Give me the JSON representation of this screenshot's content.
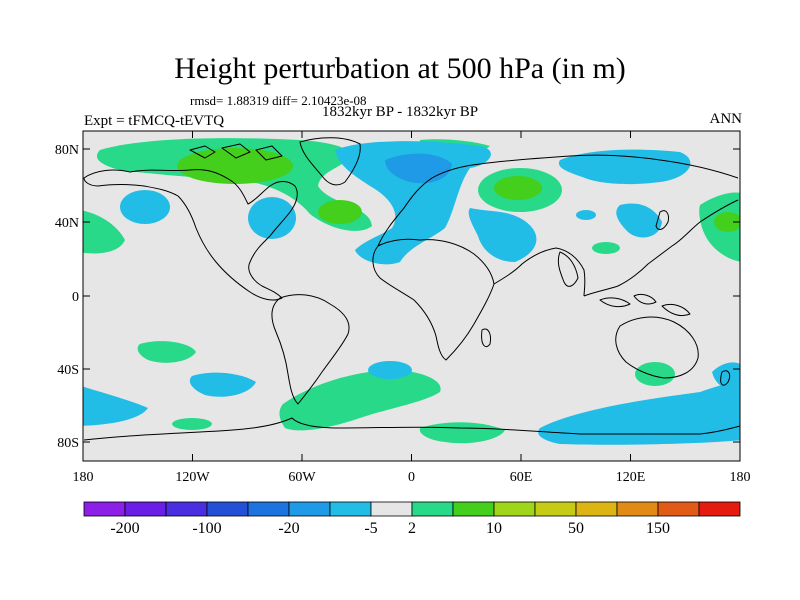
{
  "figure": {
    "title": "Height perturbation at 500 hPa (in m)",
    "stats": "rmsd= 1.88319 diff= 2.10423e-08",
    "period": "1832kyr BP - 1832kyr BP",
    "experiment": "Expt = tFMCQ-tEVTQ",
    "season": "ANN"
  },
  "axes": {
    "lat_ticks": [
      "80N",
      "40N",
      "0",
      "40S",
      "80S"
    ],
    "lon_ticks": [
      "180",
      "120W",
      "60W",
      "0",
      "60E",
      "120E",
      "180"
    ]
  },
  "colorbar": {
    "colors": [
      "#8c1fe8",
      "#6a1ee6",
      "#4a2fe0",
      "#2450d8",
      "#1d74e0",
      "#1f9ae6",
      "#22bde6",
      "#e6e6e6",
      "#29d98a",
      "#44cf1c",
      "#9fd61b",
      "#c6cc15",
      "#dcb414",
      "#e28a16",
      "#e25b16",
      "#e41b0e"
    ],
    "labels": [
      "-200",
      "-100",
      "-20",
      "-5",
      "2",
      "10",
      "50",
      "150"
    ],
    "label_boundaries": [
      1,
      3,
      5,
      7,
      8,
      10,
      12,
      14
    ]
  },
  "legend_colors": {
    "land_background": "#e6e6e6",
    "light_blue": "#22bde6",
    "mid_blue": "#1f9ae6",
    "light_green": "#29d98a",
    "mid_green": "#44cf1c",
    "coastline": "#000000"
  }
}
